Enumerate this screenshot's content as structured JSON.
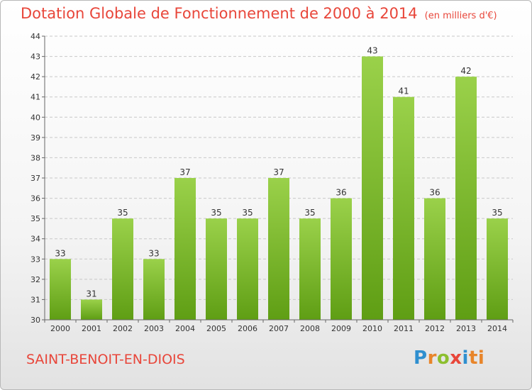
{
  "chart_data": {
    "type": "bar",
    "title": "Dotation Globale de Fonctionnement de 2000 à 2014",
    "subtitle": "(en milliers d'€)",
    "xlabel": "",
    "ylabel": "",
    "categories": [
      "2000",
      "2001",
      "2002",
      "2003",
      "2004",
      "2005",
      "2006",
      "2007",
      "2008",
      "2009",
      "2010",
      "2011",
      "2012",
      "2013",
      "2014"
    ],
    "values": [
      33,
      31,
      35,
      33,
      37,
      35,
      35,
      37,
      35,
      36,
      43,
      41,
      36,
      42,
      35
    ],
    "ylim": [
      30,
      44
    ],
    "yticks": [
      30,
      31,
      32,
      33,
      34,
      35,
      36,
      37,
      38,
      39,
      40,
      41,
      42,
      43,
      44
    ],
    "grid": true,
    "bar_color": "#7fbf2a"
  },
  "commune": "SAINT-BENOIT-EN-DIOIS",
  "logo": {
    "text": "Proxiti",
    "letters": [
      "P",
      "r",
      "o",
      "x",
      "i",
      "ti"
    ]
  },
  "colors": {
    "title": "#e8463a",
    "bar_top": "#9ad14a",
    "bar_bottom": "#5f9e14"
  }
}
